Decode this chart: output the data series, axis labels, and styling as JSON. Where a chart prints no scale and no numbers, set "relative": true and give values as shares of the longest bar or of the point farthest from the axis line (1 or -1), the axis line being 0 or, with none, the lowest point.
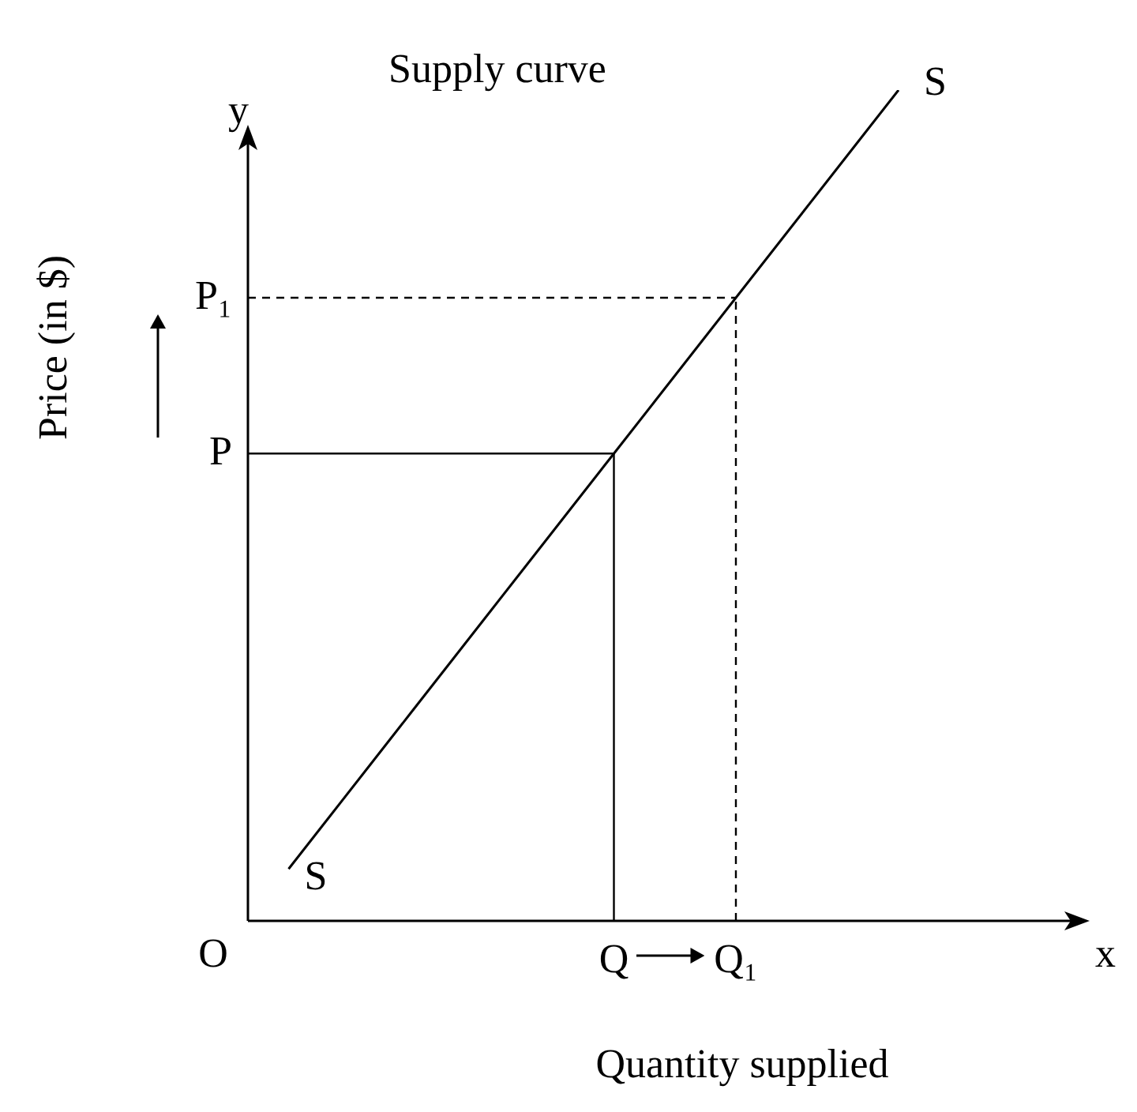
{
  "chart_data": {
    "type": "line",
    "title": "Supply curve",
    "xlabel": "Quantity supplied",
    "ylabel": "Price (in $)",
    "relative": true,
    "grid": false,
    "categories": [
      null,
      null,
      null,
      null,
      null,
      null,
      null,
      null,
      null,
      "Q",
      null,
      null,
      "Q₁",
      null,
      null,
      null,
      null,
      null,
      null,
      null,
      null
    ],
    "series": [
      {
        "name": "S",
        "color": "#000000",
        "values": [
          null,
          0.0625,
          0.125,
          0.1875,
          0.25,
          0.3125,
          0.375,
          0.4375,
          0.5,
          0.5625,
          0.625,
          0.6875,
          0.75,
          0.8125,
          0.875,
          0.9375,
          1,
          null,
          null,
          null,
          null
        ]
      }
    ],
    "ref_lines": [
      {
        "axis": "y",
        "value": 0.5625,
        "label": "P",
        "line_style": "solid"
      },
      {
        "axis": "x",
        "value": "Q",
        "line_style": "solid"
      },
      {
        "axis": "y",
        "value": 0.75,
        "label": "P₁",
        "line_style": "dashed"
      },
      {
        "axis": "x",
        "value": "Q₁",
        "line_style": "dashed"
      }
    ],
    "annotations": [
      "O",
      "x",
      "y"
    ],
    "marker": "none",
    "legend": false
  }
}
